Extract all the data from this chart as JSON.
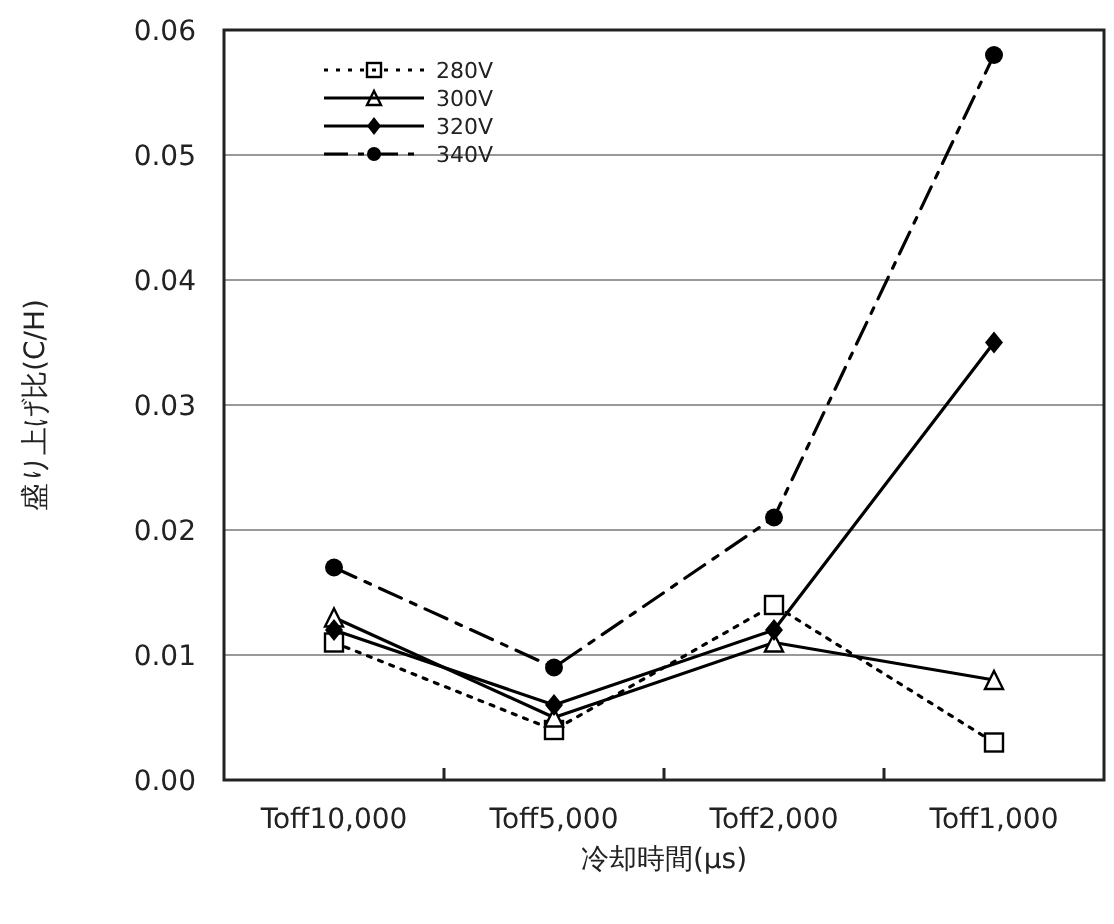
{
  "chart_data": {
    "type": "line",
    "xlabel": "冷却時間(μs)",
    "ylabel": "盛り上げ比(C/H)",
    "categories": [
      "Toff10,000",
      "Toff5,000",
      "Toff2,000",
      "Toff1,000"
    ],
    "series": [
      {
        "name": "280V",
        "color": "#000000",
        "marker": "square",
        "line_style": "dotted",
        "values": [
          0.011,
          0.004,
          0.014,
          0.003
        ]
      },
      {
        "name": "300V",
        "color": "#000000",
        "marker": "triangle",
        "line_style": "solid",
        "values": [
          0.013,
          0.005,
          0.011,
          0.008
        ]
      },
      {
        "name": "320V",
        "color": "#000000",
        "marker": "diamond",
        "line_style": "solid",
        "values": [
          0.012,
          0.006,
          0.012,
          0.035
        ]
      },
      {
        "name": "340V",
        "color": "#000000",
        "marker": "circle",
        "line_style": "dashed",
        "values": [
          0.017,
          0.009,
          0.021,
          0.058
        ]
      }
    ],
    "ylim": [
      0,
      0.06
    ],
    "yticks": [
      {
        "value": 0,
        "label": "0.00"
      },
      {
        "value": 0.01,
        "label": "0.01"
      },
      {
        "value": 0.02,
        "label": "0.02"
      },
      {
        "value": 0.03,
        "label": "0.03"
      },
      {
        "value": 0.04,
        "label": "0.04"
      },
      {
        "value": 0.05,
        "label": "0.05"
      },
      {
        "value": 0.06,
        "label": "0.06"
      }
    ],
    "grid": "y",
    "legend": "top left"
  }
}
